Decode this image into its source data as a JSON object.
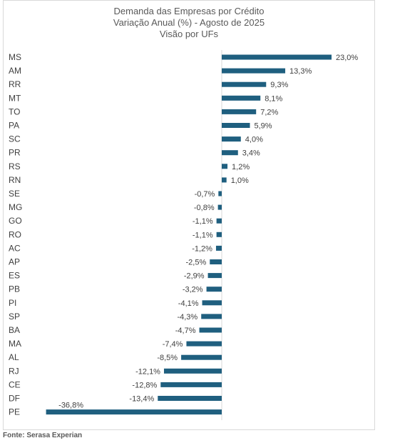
{
  "chart_data": {
    "type": "bar",
    "orientation": "horizontal",
    "title": "Demanda das Empresas por Crédito",
    "subtitle": "Variação Anual (%) - Agosto de 2025",
    "subtitle2": "Visão por UFs",
    "categories": [
      "MS",
      "AM",
      "RR",
      "MT",
      "TO",
      "PA",
      "SC",
      "PR",
      "RS",
      "RN",
      "SE",
      "MG",
      "GO",
      "RO",
      "AC",
      "AP",
      "ES",
      "PB",
      "PI",
      "SP",
      "BA",
      "MA",
      "AL",
      "RJ",
      "CE",
      "DF",
      "PE"
    ],
    "values": [
      23.0,
      13.3,
      9.3,
      8.1,
      7.2,
      5.9,
      4.0,
      3.4,
      1.2,
      1.0,
      -0.7,
      -0.8,
      -1.1,
      -1.1,
      -1.2,
      -2.5,
      -2.9,
      -3.2,
      -4.1,
      -4.3,
      -4.7,
      -7.4,
      -8.5,
      -12.1,
      -12.8,
      -13.4,
      -36.8
    ],
    "labels": [
      "23,0%",
      "13,3%",
      "9,3%",
      "8,1%",
      "7,2%",
      "5,9%",
      "4,0%",
      "3,4%",
      "1,2%",
      "1,0%",
      "-0,7%",
      "-0,8%",
      "-1,1%",
      "-1,1%",
      "-1,2%",
      "-2,5%",
      "-2,9%",
      "-3,2%",
      "-4,1%",
      "-4,3%",
      "-4,7%",
      "-7,4%",
      "-8,5%",
      "-12,1%",
      "-12,8%",
      "-13,4%",
      "-36,8%"
    ],
    "xlim": [
      -36.8,
      23.0
    ],
    "grid": false,
    "legend": "none",
    "bar_color": "#1f5f7f"
  },
  "source": "Fonte: Serasa Experian"
}
